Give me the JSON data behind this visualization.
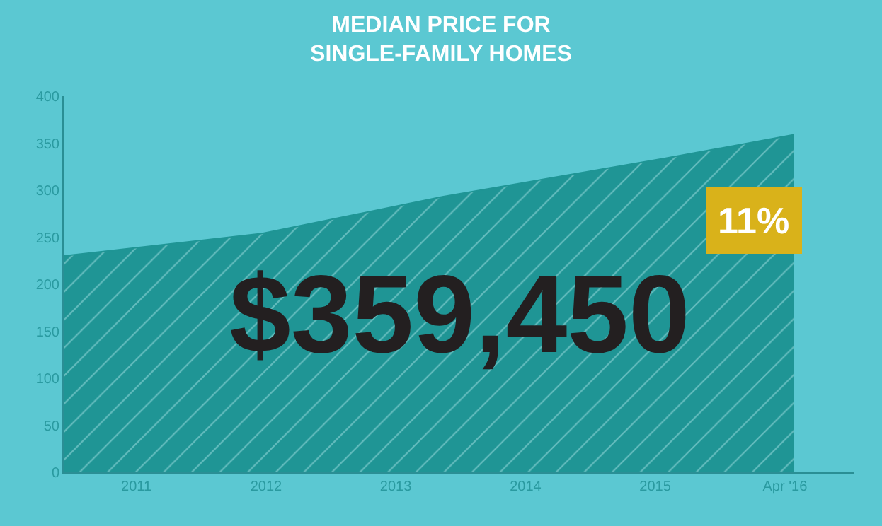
{
  "chart_data": {
    "type": "area",
    "title": "MEDIAN PRICE FOR\nSINGLE-FAMILY HOMES",
    "x": [
      2010.44,
      2011.97,
      2013.36,
      2015.08,
      2016.07
    ],
    "series": [
      {
        "color": "#1f9595",
        "values": [
          230,
          254,
          293,
          334,
          359
        ]
      }
    ],
    "xlim": [
      2010.44,
      2016.53
    ],
    "xticks": [
      2011,
      2012,
      2013,
      2014,
      2015,
      {
        "value": 2016,
        "label": "Apr '16"
      }
    ],
    "ylim": [
      0,
      400
    ],
    "yticks": [
      0,
      50,
      100,
      150,
      200,
      250,
      300,
      350,
      400
    ],
    "grid": false,
    "marker": "none",
    "annotations": [
      "$359,450",
      "11%"
    ]
  }
}
